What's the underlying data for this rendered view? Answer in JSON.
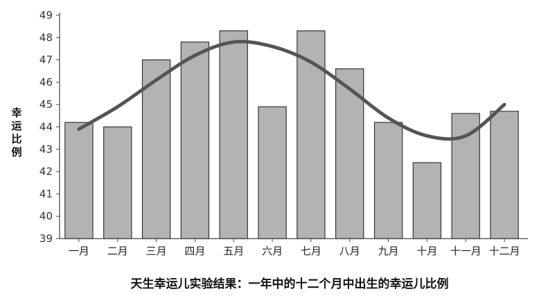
{
  "chart_data": {
    "type": "bar",
    "title": "",
    "caption": "天生幸运儿实验结果：一年中的十二个月中出生的幸运儿比例",
    "xlabel": "",
    "ylabel": "幸运比例",
    "ylim": [
      39,
      49
    ],
    "yticks": [
      "39",
      "40",
      "41",
      "42",
      "43",
      "44",
      "45",
      "46",
      "47",
      "48",
      "49"
    ],
    "categories": [
      "一月",
      "二月",
      "三月",
      "四月",
      "五月",
      "六月",
      "七月",
      "八月",
      "九月",
      "十月",
      "十一月",
      "十二月"
    ],
    "values": [
      44.2,
      44.0,
      47.0,
      47.8,
      48.3,
      44.9,
      48.3,
      46.6,
      44.2,
      42.4,
      44.6,
      44.7
    ],
    "trend_line": [
      43.9,
      44.9,
      46.1,
      47.2,
      47.8,
      47.6,
      46.9,
      45.7,
      44.4,
      43.6,
      43.6,
      45.0
    ],
    "grid": false,
    "legend": "none",
    "colors": {
      "bar": "#b3b3b3",
      "trend": "#555555"
    }
  }
}
